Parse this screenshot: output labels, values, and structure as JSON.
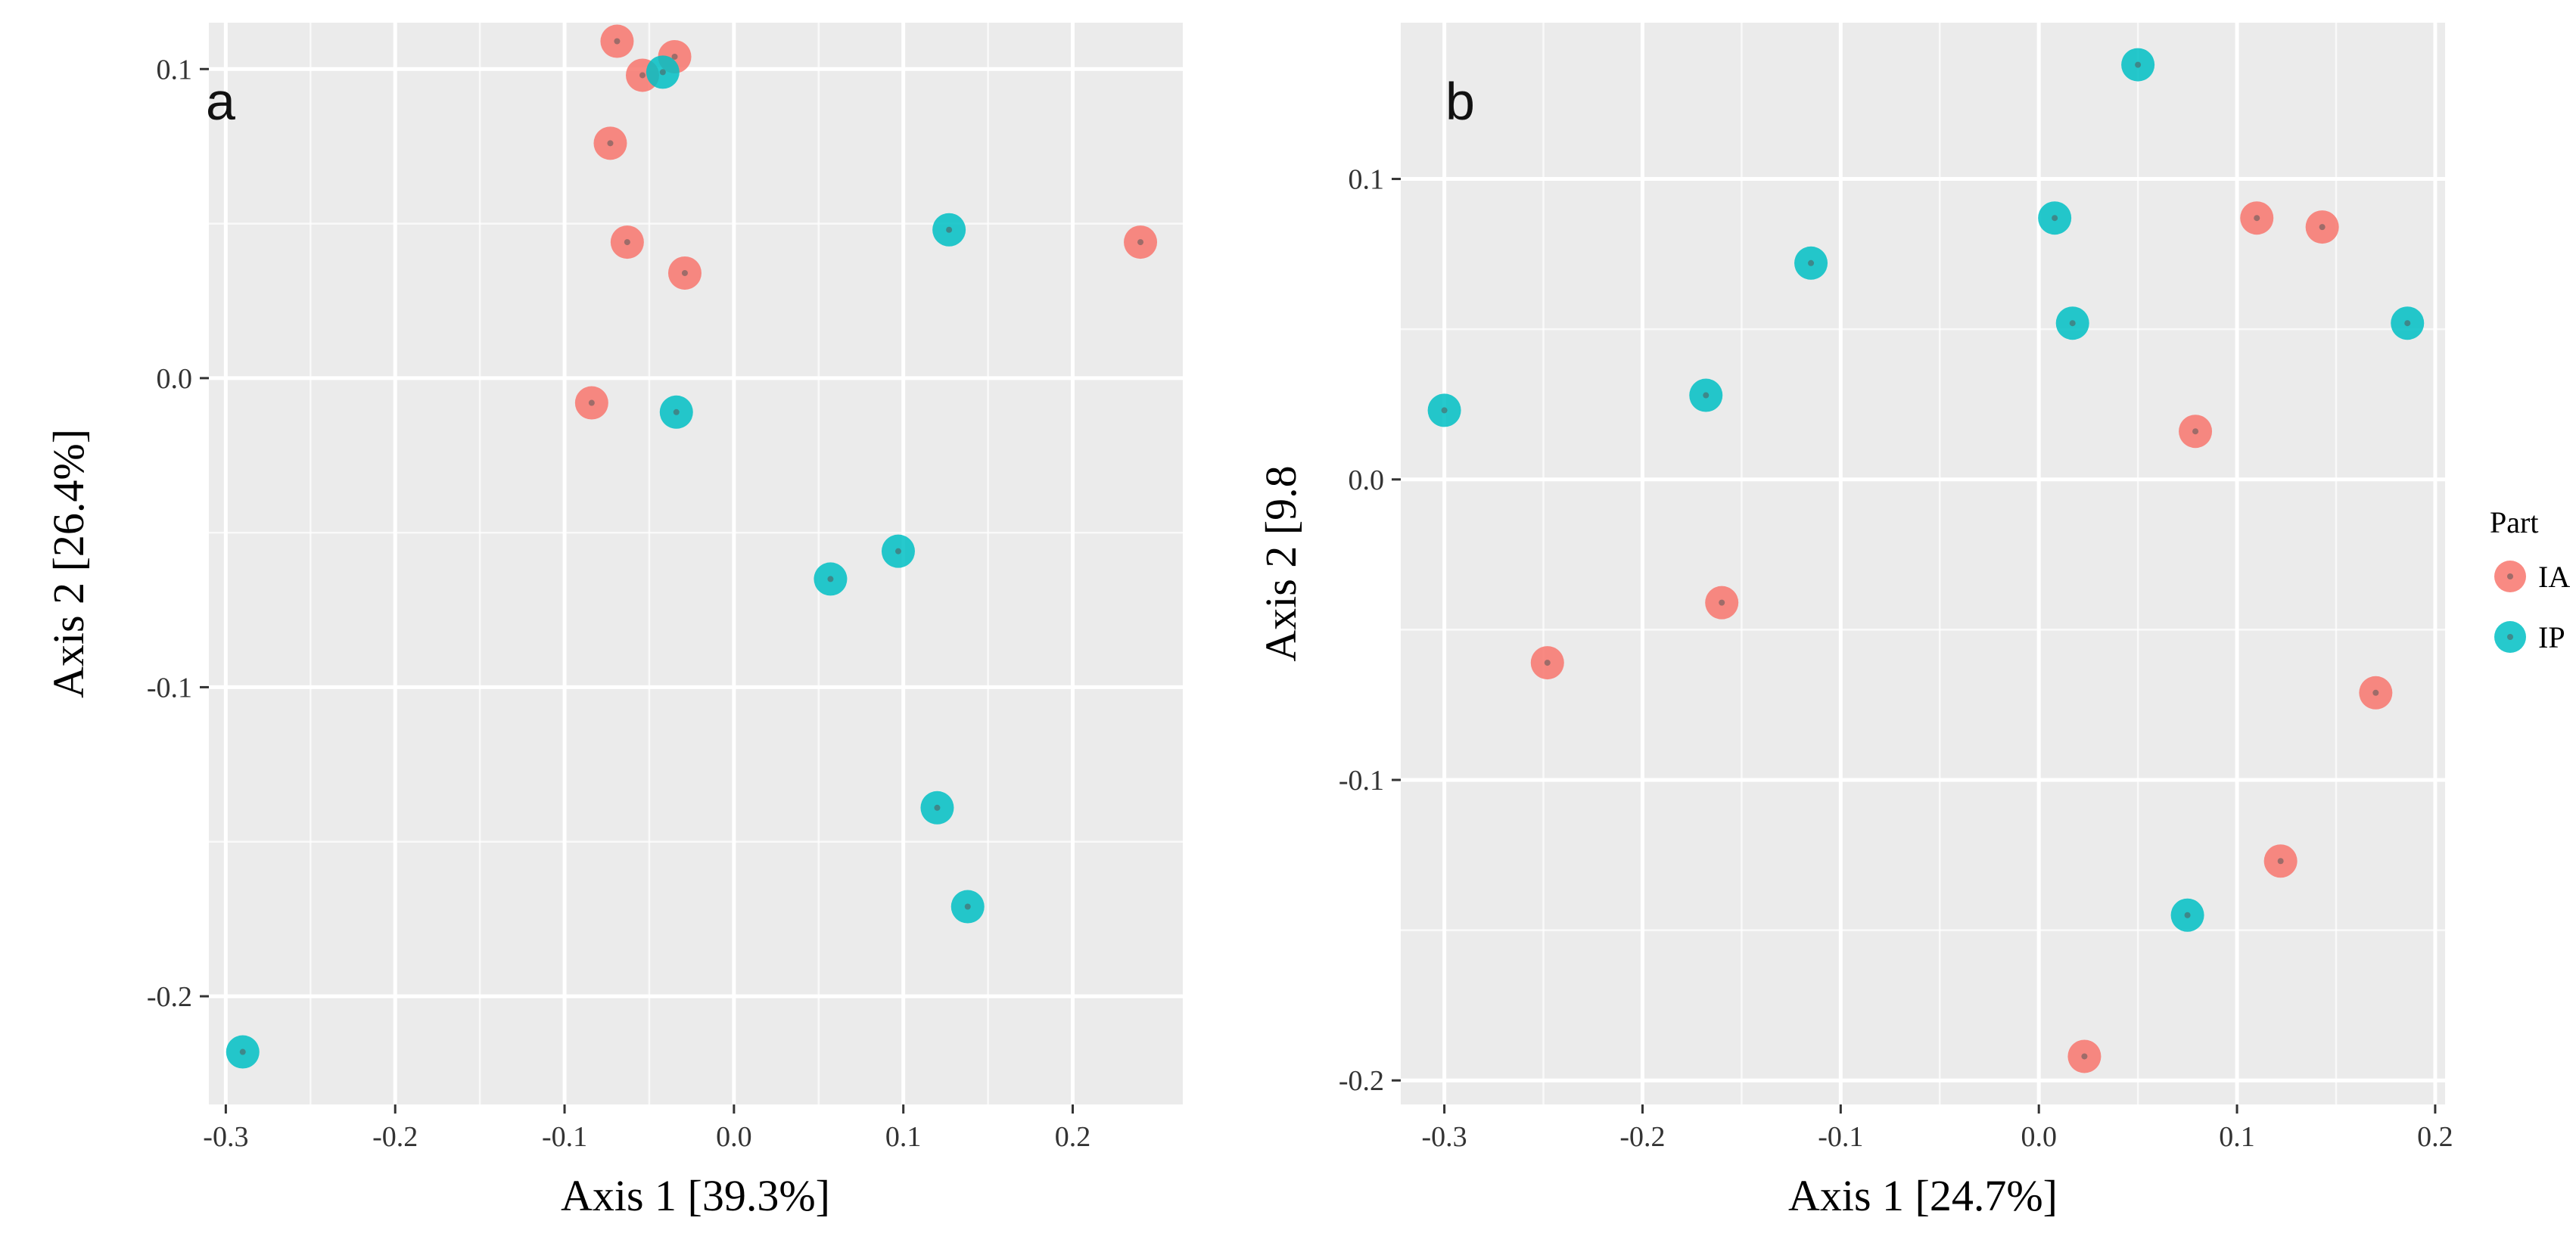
{
  "colors": {
    "IA": "#F8766D",
    "IP": "#00BFC4",
    "panel_bg": "#EBEBEB",
    "grid": "#FFFFFF"
  },
  "legend": {
    "title": "Part",
    "items": [
      {
        "key": "IA",
        "label": "IA"
      },
      {
        "key": "IP",
        "label": "IP"
      }
    ]
  },
  "chart_data": [
    {
      "type": "scatter",
      "panel_label": "a",
      "xlabel": "Axis 1 [39.3%]",
      "ylabel": "Axis 2 [26.4%]",
      "xlim": [
        -0.31,
        0.265
      ],
      "ylim": [
        -0.235,
        0.115
      ],
      "xticks": [
        -0.3,
        -0.2,
        -0.1,
        0.0,
        0.1,
        0.2
      ],
      "xtick_labels": [
        "-0.3",
        "-0.2",
        "-0.1",
        "0.0",
        "0.1",
        "0.2"
      ],
      "yticks": [
        -0.2,
        -0.1,
        0.0,
        0.1
      ],
      "ytick_labels": [
        "-0.2",
        "-0.1",
        "0.0",
        "0.1"
      ],
      "series": [
        {
          "name": "IA",
          "points": [
            {
              "x": -0.069,
              "y": 0.109
            },
            {
              "x": -0.035,
              "y": 0.104
            },
            {
              "x": -0.054,
              "y": 0.098
            },
            {
              "x": -0.073,
              "y": 0.076
            },
            {
              "x": -0.063,
              "y": 0.044
            },
            {
              "x": -0.029,
              "y": 0.034
            },
            {
              "x": 0.24,
              "y": 0.044
            },
            {
              "x": -0.084,
              "y": -0.008
            }
          ]
        },
        {
          "name": "IP",
          "points": [
            {
              "x": -0.042,
              "y": 0.099
            },
            {
              "x": 0.127,
              "y": 0.048
            },
            {
              "x": -0.034,
              "y": -0.011
            },
            {
              "x": 0.057,
              "y": -0.065
            },
            {
              "x": 0.097,
              "y": -0.056
            },
            {
              "x": 0.12,
              "y": -0.139
            },
            {
              "x": 0.138,
              "y": -0.171
            },
            {
              "x": -0.29,
              "y": -0.218
            }
          ]
        }
      ]
    },
    {
      "type": "scatter",
      "panel_label": "b",
      "xlabel": "Axis 1 [24.7%]",
      "ylabel": "Axis 2 [9.8",
      "xlim": [
        -0.322,
        0.205
      ],
      "ylim": [
        -0.208,
        0.152
      ],
      "xticks": [
        -0.3,
        -0.2,
        -0.1,
        0.0,
        0.1,
        0.2
      ],
      "xtick_labels": [
        "-0.3",
        "-0.2",
        "-0.1",
        "0.0",
        "0.1",
        "0.2"
      ],
      "yticks": [
        -0.2,
        -0.1,
        0.0,
        0.1
      ],
      "ytick_labels": [
        "-0.2",
        "-0.1",
        "0.0",
        "0.1"
      ],
      "series": [
        {
          "name": "IA",
          "points": [
            {
              "x": 0.11,
              "y": 0.087
            },
            {
              "x": 0.143,
              "y": 0.084
            },
            {
              "x": 0.079,
              "y": 0.016
            },
            {
              "x": -0.16,
              "y": -0.041
            },
            {
              "x": -0.248,
              "y": -0.061
            },
            {
              "x": 0.17,
              "y": -0.071
            },
            {
              "x": 0.122,
              "y": -0.127
            },
            {
              "x": 0.023,
              "y": -0.192
            }
          ]
        },
        {
          "name": "IP",
          "points": [
            {
              "x": 0.05,
              "y": 0.138
            },
            {
              "x": 0.008,
              "y": 0.087
            },
            {
              "x": -0.115,
              "y": 0.072
            },
            {
              "x": 0.017,
              "y": 0.052
            },
            {
              "x": 0.186,
              "y": 0.052
            },
            {
              "x": -0.168,
              "y": 0.028
            },
            {
              "x": -0.3,
              "y": 0.023
            },
            {
              "x": 0.075,
              "y": -0.145
            }
          ]
        }
      ]
    }
  ]
}
